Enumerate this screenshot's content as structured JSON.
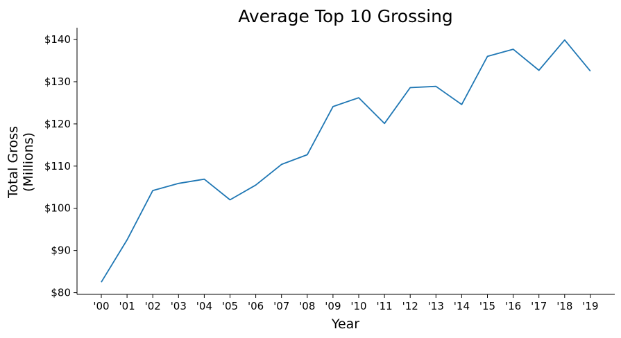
{
  "chart_data": {
    "type": "line",
    "title": "Average Top 10 Grossing",
    "xlabel": "Year",
    "ylabel_lines": [
      "Total Gross",
      "(Millions)"
    ],
    "categories": [
      "'00",
      "'01",
      "'02",
      "'03",
      "'04",
      "'05",
      "'06",
      "'07",
      "'08",
      "'09",
      "'10",
      "'11",
      "'12",
      "'13",
      "'14",
      "'15",
      "'16",
      "'17",
      "'18",
      "'19"
    ],
    "series": [
      {
        "color": "#1f77b4",
        "values": [
          82.5,
          92.5,
          104.2,
          105.9,
          106.9,
          102.0,
          105.5,
          110.4,
          112.7,
          124.1,
          126.2,
          120.1,
          128.6,
          128.9,
          124.6,
          136.0,
          137.7,
          132.7,
          139.9,
          132.5
        ]
      }
    ],
    "yticks": [
      80,
      90,
      100,
      110,
      120,
      130,
      140
    ],
    "ytick_labels": [
      "$80",
      "$90",
      "$100",
      "$110",
      "$120",
      "$130",
      "$140"
    ],
    "ylim": [
      79.6,
      142.8
    ],
    "grid": false,
    "legend": "none"
  }
}
